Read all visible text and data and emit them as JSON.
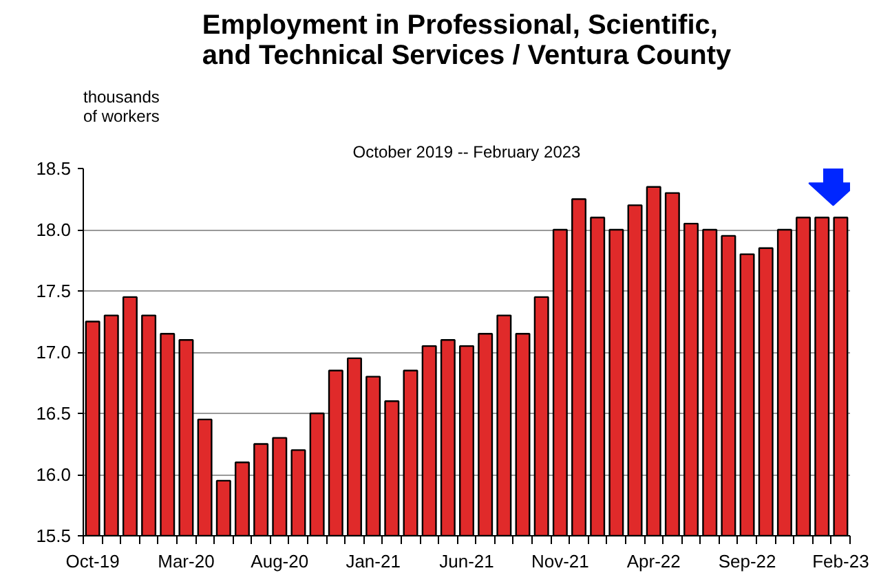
{
  "chart_data": {
    "type": "bar",
    "title": "Employment in Professional, Scientific,\nand Technical Services / Ventura County",
    "subtitle": "October 2019 -- February 2023",
    "ylabel": "thousands\nof workers",
    "categories": [
      "Oct-19",
      null,
      null,
      null,
      null,
      "Mar-20",
      null,
      null,
      null,
      null,
      "Aug-20",
      null,
      null,
      null,
      null,
      "Jan-21",
      null,
      null,
      null,
      null,
      "Jun-21",
      null,
      null,
      null,
      null,
      "Nov-21",
      null,
      null,
      null,
      null,
      "Apr-22",
      null,
      null,
      null,
      null,
      "Sep-22",
      null,
      null,
      null,
      null,
      "Feb-23"
    ],
    "values": [
      17.25,
      17.3,
      17.45,
      17.3,
      17.15,
      17.1,
      16.45,
      15.95,
      16.1,
      16.25,
      16.3,
      16.2,
      16.5,
      16.85,
      16.95,
      16.8,
      16.6,
      16.85,
      17.05,
      17.1,
      17.05,
      17.15,
      17.3,
      17.15,
      17.45,
      18.0,
      18.25,
      18.1,
      18.0,
      18.2,
      18.35,
      18.3,
      18.05,
      18.0,
      17.95,
      17.8,
      17.85,
      18.0,
      18.1,
      18.1,
      18.1
    ],
    "color": "#e02a2a",
    "ylim": [
      15.5,
      18.5
    ],
    "yticks": [
      15.5,
      {
        "value": 16,
        "label": "16.0"
      },
      16.5,
      {
        "value": 17,
        "label": "17.0"
      },
      17.5,
      {
        "value": 18,
        "label": "18.0"
      },
      18.5
    ],
    "grid": "y"
  }
}
